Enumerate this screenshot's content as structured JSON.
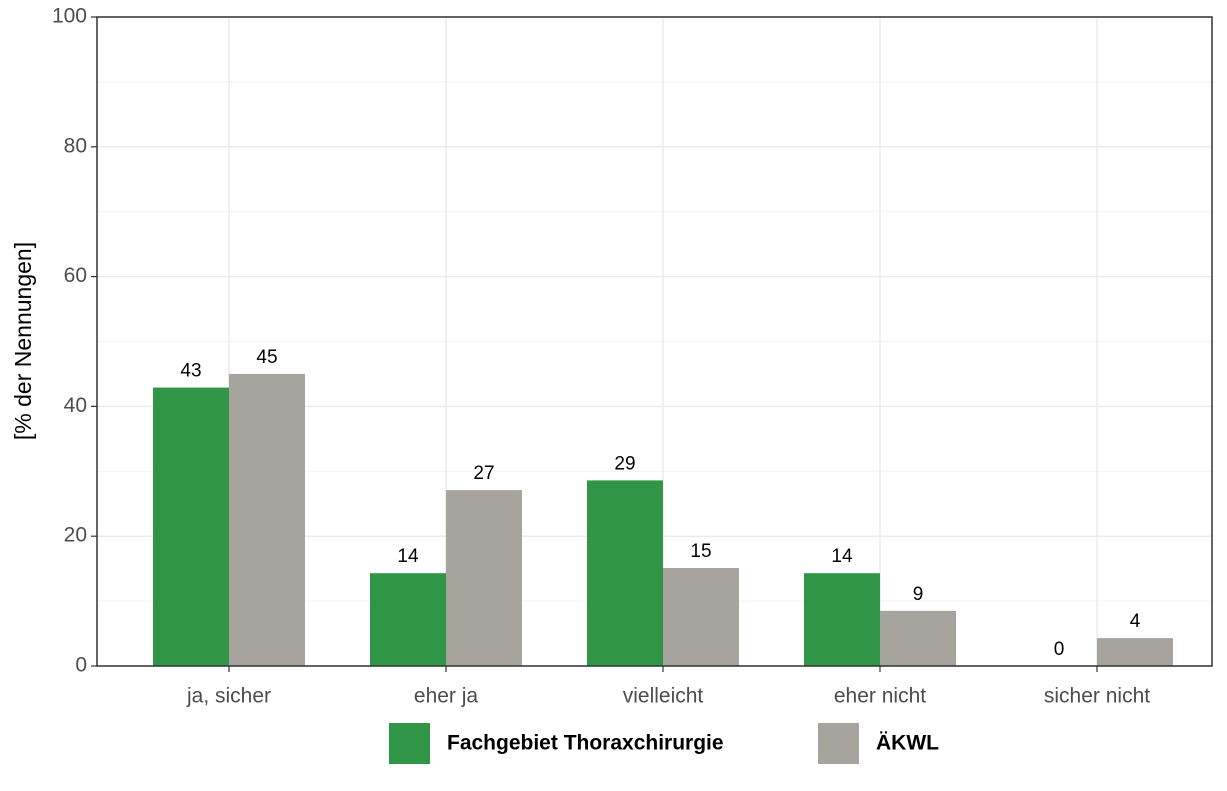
{
  "chart_data": {
    "type": "bar",
    "y_label": "[% der Nennungen]",
    "categories": [
      "ja, sicher",
      "eher ja",
      "vielleicht",
      "eher nicht",
      "sicher nicht"
    ],
    "series": [
      {
        "name": "Fachgebiet Thoraxchirurgie",
        "color": "#319547",
        "values": [
          42.9,
          14.3,
          28.6,
          14.3,
          0
        ],
        "value_labels": [
          "43",
          "14",
          "29",
          "14",
          "0"
        ]
      },
      {
        "name": "ÄKWL",
        "color": "#a6a49c",
        "values": [
          45.0,
          27.1,
          15.1,
          8.5,
          4.3
        ],
        "value_labels": [
          "45",
          "27",
          "15",
          "9",
          "4"
        ]
      }
    ],
    "ylim": [
      0,
      100
    ],
    "yticks": [
      0,
      20,
      40,
      60,
      80,
      100
    ],
    "y_minor_ticks": [
      10,
      30,
      50,
      70,
      90
    ],
    "grid": true,
    "legend": "bottom"
  }
}
